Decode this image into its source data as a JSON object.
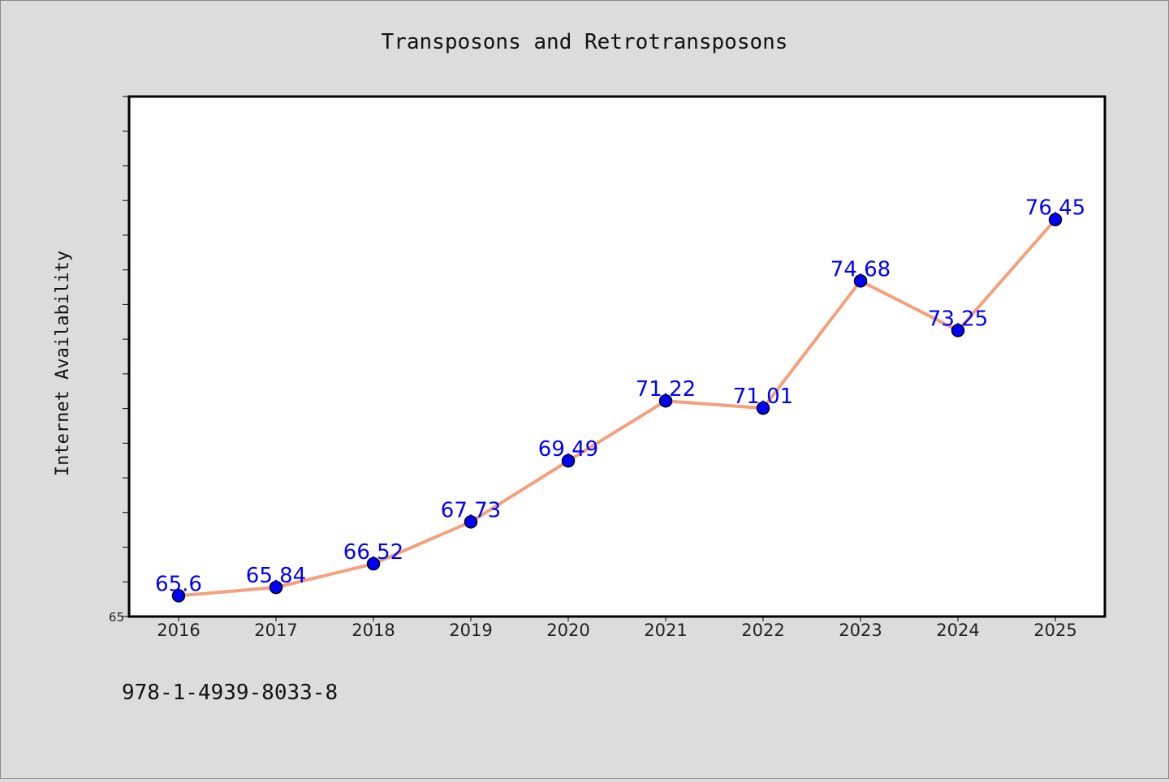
{
  "chart_data": {
    "type": "line",
    "title": "Transposons and Retrotransposons",
    "xlabel": "",
    "ylabel": "Internet Availability",
    "categories": [
      "2016",
      "2017",
      "2018",
      "2019",
      "2020",
      "2021",
      "2022",
      "2023",
      "2024",
      "2025"
    ],
    "series": [
      {
        "values": [
          65.6,
          65.84,
          66.52,
          67.73,
          69.49,
          71.22,
          71.01,
          74.68,
          73.25,
          76.45
        ],
        "labels": [
          "65.6",
          "65.84",
          "66.52",
          "67.73",
          "69.49",
          "71.22",
          "71.01",
          "74.68",
          "73.25",
          "76.45"
        ]
      }
    ],
    "ylim": [
      65,
      80
    ],
    "yticks_labeled": [
      "65"
    ],
    "ytick_step": 1,
    "grid": false,
    "legend": "none",
    "colors": {
      "line": "#f4a07c",
      "marker": "#0000ff",
      "marker_edge": "#000000",
      "label": "#0000ff",
      "background": "#dcdcdc",
      "plot_background": "#ffffff"
    }
  },
  "footer": {
    "isbn": "978-1-4939-8033-8"
  }
}
